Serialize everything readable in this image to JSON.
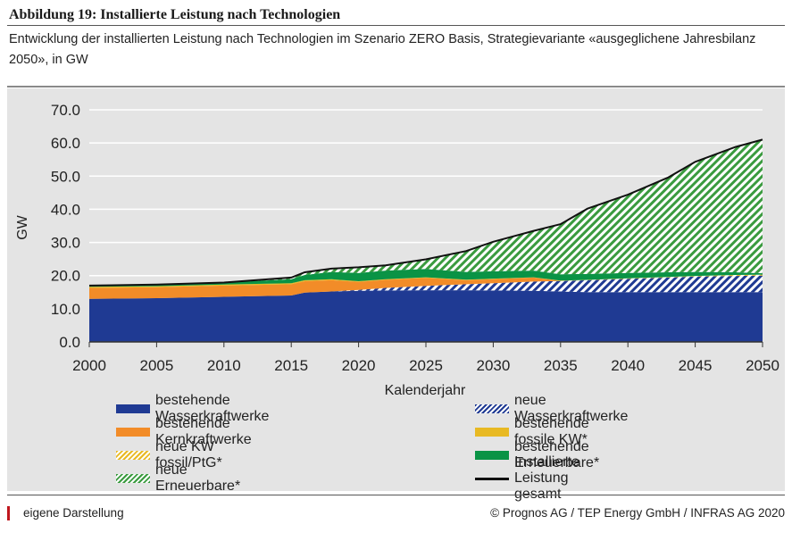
{
  "header": {
    "title": "Abbildung 19: Installierte Leistung nach Technologien",
    "subtitle": "Entwicklung der installierten Leistung nach Technologien im Szenario ZERO Basis, Strategievariante «ausgeglichene Jahresbilanz 2050», in GW"
  },
  "footer": {
    "source": "eigene Darstellung",
    "copyright": "© Prognos AG / TEP Energy GmbH / INFRAS AG 2020"
  },
  "colors": {
    "hydro": "#1f3a93",
    "nuclear": "#f28c28",
    "fossil": "#e8b923",
    "renew_exist": "#0a9345",
    "renew_new": "#3a9b3f",
    "total": "#111111",
    "panel": "#e4e4e4"
  },
  "chart_data": {
    "type": "area",
    "stacked": true,
    "xlabel": "Kalenderjahr",
    "ylabel": "GW",
    "ylim": [
      0,
      70
    ],
    "xlim": [
      2000,
      2050
    ],
    "yticks": [
      "0.0",
      "10.0",
      "20.0",
      "30.0",
      "40.0",
      "50.0",
      "60.0",
      "70.0"
    ],
    "xticks": [
      "2000",
      "2005",
      "2010",
      "2015",
      "2020",
      "2025",
      "2030",
      "2035",
      "2040",
      "2045",
      "2050"
    ],
    "grid": true,
    "legend_position": "bottom",
    "x": [
      2000,
      2005,
      2010,
      2015,
      2016,
      2018,
      2020,
      2022,
      2025,
      2028,
      2030,
      2033,
      2035,
      2037,
      2040,
      2043,
      2045,
      2048,
      2050
    ],
    "series": [
      {
        "name": "bestehende Wasserkraftwerke",
        "pattern": "solid",
        "color": "hydro",
        "values": [
          13.0,
          13.2,
          13.6,
          14.0,
          14.9,
          15.2,
          15.4,
          15.5,
          15.6,
          15.6,
          15.5,
          15.4,
          15.2,
          15.0,
          15.0,
          15.0,
          15.0,
          15.0,
          15.0
        ]
      },
      {
        "name": "neue Wasserkraftwerke",
        "pattern": "hatch",
        "color": "hydro",
        "values": [
          0,
          0,
          0,
          0,
          0,
          0,
          0.3,
          0.8,
          1.3,
          1.8,
          2.2,
          2.8,
          3.2,
          3.6,
          4.0,
          4.4,
          4.7,
          4.9,
          5.0
        ]
      },
      {
        "name": "bestehende Kernkraftwerke",
        "pattern": "solid",
        "color": "nuclear",
        "values": [
          3.3,
          3.3,
          3.4,
          3.4,
          3.4,
          3.4,
          2.4,
          2.4,
          2.4,
          1.2,
          1.2,
          1.2,
          0,
          0,
          0,
          0,
          0,
          0,
          0
        ]
      },
      {
        "name": "bestehende fossile KW*",
        "pattern": "solid",
        "color": "fossil",
        "values": [
          0.3,
          0.3,
          0.3,
          0.3,
          0.3,
          0.3,
          0.2,
          0.2,
          0.2,
          0.2,
          0.2,
          0.1,
          0.1,
          0,
          0,
          0,
          0,
          0,
          0
        ]
      },
      {
        "name": "neue KW fossil/PtG*",
        "pattern": "hatch",
        "color": "fossil",
        "values": [
          0,
          0,
          0,
          0,
          0,
          0,
          0,
          0,
          0,
          0,
          0,
          0,
          0,
          0.1,
          0.2,
          0.2,
          0.2,
          0.3,
          0.3
        ]
      },
      {
        "name": "bestehende Erneuerbare*",
        "pattern": "solid",
        "color": "renew_exist",
        "values": [
          0.4,
          0.5,
          0.6,
          1.2,
          1.6,
          2.2,
          2.5,
          2.6,
          2.5,
          2.3,
          2.2,
          2.0,
          1.9,
          1.8,
          1.6,
          1.4,
          1.2,
          0.8,
          0.4
        ]
      },
      {
        "name": "neue Erneuerbare*",
        "pattern": "hatch",
        "color": "renew_new",
        "values": [
          0,
          0,
          0,
          0.5,
          0.8,
          1.0,
          1.7,
          1.6,
          2.9,
          6.3,
          8.9,
          12.0,
          15.1,
          19.7,
          23.6,
          28.6,
          33.2,
          37.8,
          40.3
        ]
      },
      {
        "name": "Installierte Leistung gesamt",
        "type": "line",
        "color": "total",
        "values": [
          17.0,
          17.3,
          17.9,
          19.4,
          21.0,
          22.1,
          22.5,
          23.1,
          24.9,
          27.4,
          30.2,
          33.5,
          35.5,
          40.2,
          44.4,
          49.6,
          54.3,
          58.8,
          61.0
        ]
      }
    ]
  }
}
